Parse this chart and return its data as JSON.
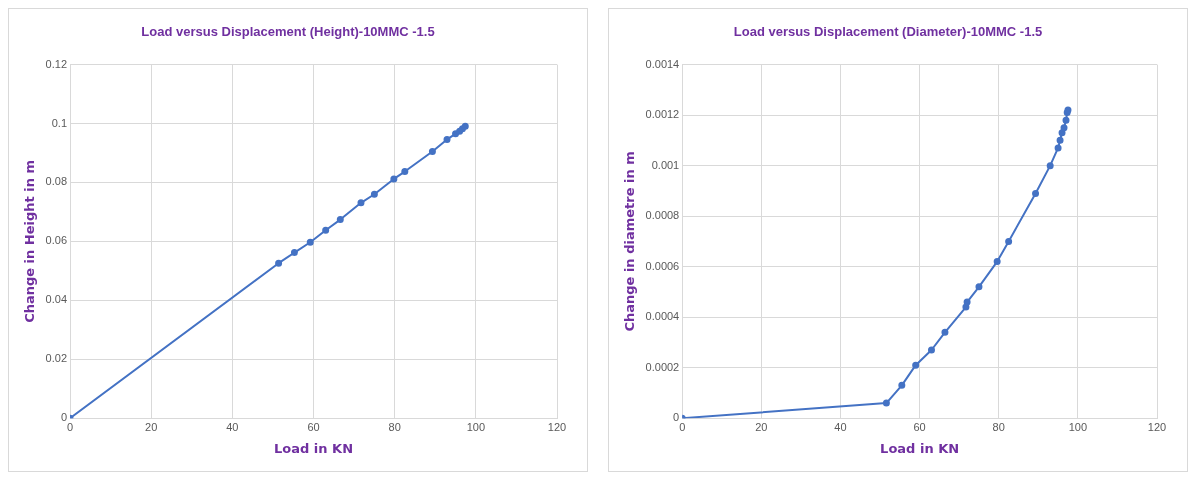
{
  "chart_data": [
    {
      "type": "line",
      "title": "Load versus Displacement (Height)-10MMC -1.5",
      "xlabel": "Load in KN",
      "ylabel": "Change in Height in m",
      "x": [
        0,
        51.4,
        55.3,
        59.2,
        63,
        66.6,
        71.7,
        75,
        79.8,
        82.5,
        89.3,
        92.9,
        95,
        96,
        96.7,
        97.4
      ],
      "series": [
        {
          "color": "#4472c4",
          "values": [
            0,
            0.0526,
            0.0562,
            0.0597,
            0.0638,
            0.0674,
            0.0731,
            0.076,
            0.0812,
            0.0837,
            0.0905,
            0.0946,
            0.0965,
            0.0974,
            0.0982,
            0.0991
          ]
        }
      ],
      "xlim": [
        0,
        120
      ],
      "xticks": [
        0,
        20,
        40,
        60,
        80,
        100,
        120
      ],
      "ylim": [
        0,
        0.12
      ],
      "yticks": [
        0,
        0.02,
        0.04,
        0.06,
        0.08,
        0.1,
        0.12
      ],
      "grid": true,
      "marker": "circle",
      "line_style": "solid"
    },
    {
      "type": "line",
      "title": "Load versus Displacement (Diameter)-10MMC -1.5",
      "xlabel": "Load in KN",
      "ylabel": "Change in diametre in m",
      "x": [
        0,
        51.6,
        55.5,
        59,
        63,
        66.4,
        71.7,
        72,
        75,
        79.6,
        82.5,
        89.3,
        93,
        95,
        95.5,
        96,
        96.5,
        97,
        97.3,
        97.5
      ],
      "series": [
        {
          "color": "#4472c4",
          "values": [
            0,
            6e-05,
            0.00013,
            0.00021,
            0.00027,
            0.00034,
            0.00044,
            0.00046,
            0.00052,
            0.00062,
            0.0007,
            0.00089,
            0.001,
            0.00107,
            0.0011,
            0.00113,
            0.00115,
            0.00118,
            0.00121,
            0.00122
          ]
        }
      ],
      "xlim": [
        0,
        120
      ],
      "xticks": [
        0,
        20,
        40,
        60,
        80,
        100,
        120
      ],
      "ylim": [
        0,
        0.0014
      ],
      "yticks": [
        0,
        0.0002,
        0.0004,
        0.0006,
        0.0008,
        0.001,
        0.0012,
        0.0014
      ],
      "grid": true,
      "marker": "circle",
      "line_style": "solid"
    }
  ]
}
